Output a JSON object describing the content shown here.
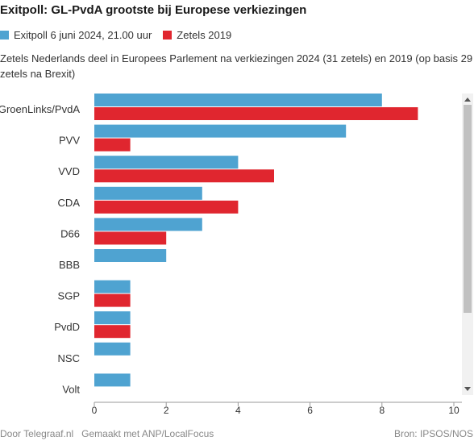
{
  "title": "Exitpoll: GL-PvdA grootste bij Europese verkiezingen",
  "subtitle": "Zetels Nederlands deel in Europees Parlement na verkiezingen 2024 (31 zetels) en 2019 (op basis 29 zetels na Brexit)",
  "footer": {
    "left": "Door Telegraaf.nl   Gemaakt met ANP/LocalFocus",
    "right": "Bron: IPSOS/NOS"
  },
  "colors": {
    "exitpoll": "#4fa3d1",
    "zetels2019": "#e0262f"
  },
  "chart_data": {
    "type": "bar",
    "orientation": "horizontal",
    "title": "Exitpoll: GL-PvdA grootste bij Europese verkiezingen",
    "categories": [
      "GroenLinks/PvdA",
      "PVV",
      "VVD",
      "CDA",
      "D66",
      "BBB",
      "SGP",
      "PvdD",
      "NSC",
      "Volt"
    ],
    "series": [
      {
        "name": "Exitpoll 6 juni 2024, 21.00 uur",
        "values": [
          8,
          7,
          4,
          3,
          3,
          2,
          1,
          1,
          1,
          1
        ]
      },
      {
        "name": "Zetels 2019",
        "values": [
          9,
          1,
          5,
          4,
          2,
          0,
          1,
          1,
          0,
          0
        ]
      }
    ],
    "xlim": [
      0,
      10
    ],
    "ticks": [
      0,
      2,
      4,
      6,
      8,
      10
    ],
    "legend_position": "top-left",
    "grid": false
  }
}
